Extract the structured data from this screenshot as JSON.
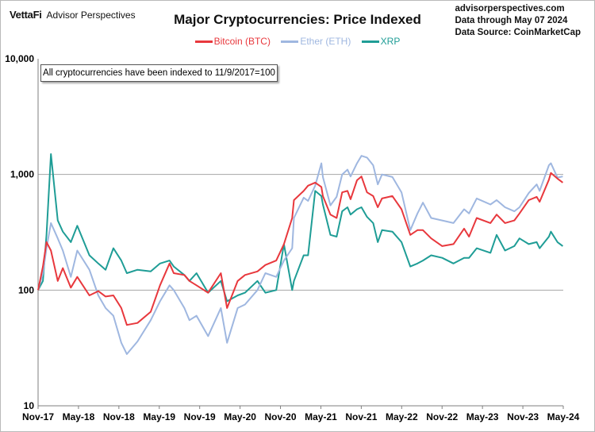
{
  "header": {
    "brand": "VettaFi",
    "brand_sub": "Advisor Perspectives",
    "title": "Major Cryptocurrencies: Price Indexed",
    "site": "advisorperspectives.com",
    "data_through": "Data through May 07 2024",
    "source": "Data Source: CoinMarketCap"
  },
  "note": "All cryptocurrencies have been indexed to 11/9/2017=100",
  "chart_data": {
    "type": "line",
    "title": "Major Cryptocurrencies: Price Indexed",
    "y_scale": "log",
    "ylim": [
      10,
      10000
    ],
    "y_ticks": [
      "10",
      "100",
      "1,000",
      "10,000"
    ],
    "x_ticks": [
      "Nov-17",
      "May-18",
      "Nov-18",
      "May-19",
      "Nov-19",
      "May-20",
      "Nov-20",
      "May-21",
      "Nov-21",
      "May-22",
      "Nov-22",
      "May-23",
      "Nov-23",
      "May-24"
    ],
    "legend_position": "top-center",
    "grid": "horizontal",
    "x": [
      "2017-11-09",
      "2017-12-01",
      "2017-12-17",
      "2018-01-06",
      "2018-02-06",
      "2018-03-01",
      "2018-04-06",
      "2018-05-05",
      "2018-06-29",
      "2018-08-08",
      "2018-09-10",
      "2018-10-15",
      "2018-11-20",
      "2018-12-15",
      "2019-02-01",
      "2019-04-02",
      "2019-05-14",
      "2019-06-26",
      "2019-07-15",
      "2019-09-01",
      "2019-09-24",
      "2019-10-26",
      "2019-12-17",
      "2020-02-13",
      "2020-03-12",
      "2020-04-29",
      "2020-06-01",
      "2020-07-27",
      "2020-09-01",
      "2020-10-20",
      "2020-11-24",
      "2020-12-31",
      "2021-01-08",
      "2021-02-21",
      "2021-03-13",
      "2021-04-14",
      "2021-05-12",
      "2021-05-19",
      "2021-06-22",
      "2021-07-20",
      "2021-08-14",
      "2021-09-07",
      "2021-09-21",
      "2021-10-20",
      "2021-11-09",
      "2021-12-04",
      "2022-01-01",
      "2022-01-22",
      "2022-02-10",
      "2022-03-29",
      "2022-05-09",
      "2022-06-18",
      "2022-07-20",
      "2022-08-14",
      "2022-09-20",
      "2022-11-09",
      "2022-12-30",
      "2023-02-16",
      "2023-03-10",
      "2023-04-14",
      "2023-06-15",
      "2023-07-13",
      "2023-08-20",
      "2023-10-01",
      "2023-10-24",
      "2023-12-05",
      "2024-01-10",
      "2024-01-23",
      "2024-03-05",
      "2024-03-14",
      "2024-04-13",
      "2024-05-07"
    ],
    "series": [
      {
        "name": "Bitcoin (BTC)",
        "color": "#e8383d",
        "values": [
          100,
          160,
          260,
          220,
          120,
          155,
          105,
          130,
          90,
          98,
          88,
          90,
          70,
          50,
          52,
          65,
          110,
          170,
          140,
          135,
          120,
          110,
          95,
          140,
          70,
          120,
          135,
          145,
          165,
          180,
          250,
          420,
          600,
          720,
          800,
          850,
          780,
          650,
          450,
          420,
          700,
          720,
          610,
          890,
          960,
          700,
          650,
          520,
          620,
          650,
          500,
          300,
          330,
          330,
          280,
          240,
          250,
          340,
          290,
          420,
          380,
          450,
          380,
          400,
          460,
          600,
          640,
          580,
          900,
          1030,
          920,
          850
        ]
      },
      {
        "name": "Ether (ETH)",
        "color": "#9fb7e0",
        "values": [
          100,
          140,
          230,
          380,
          280,
          220,
          130,
          220,
          150,
          90,
          70,
          60,
          35,
          28,
          36,
          55,
          80,
          110,
          100,
          70,
          55,
          60,
          40,
          70,
          35,
          70,
          75,
          100,
          140,
          130,
          180,
          230,
          420,
          630,
          590,
          800,
          1250,
          950,
          540,
          640,
          1000,
          1100,
          960,
          1250,
          1450,
          1400,
          1200,
          820,
          1000,
          950,
          700,
          330,
          460,
          570,
          420,
          400,
          380,
          500,
          460,
          620,
          550,
          600,
          520,
          480,
          520,
          690,
          820,
          720,
          1200,
          1250,
          940,
          960
        ]
      },
      {
        "name": "XRP",
        "color": "#1f9d96",
        "values": [
          100,
          120,
          300,
          1500,
          400,
          320,
          260,
          360,
          200,
          170,
          150,
          230,
          180,
          140,
          150,
          145,
          170,
          180,
          160,
          135,
          120,
          140,
          95,
          120,
          80,
          90,
          95,
          120,
          95,
          100,
          250,
          100,
          120,
          200,
          200,
          720,
          650,
          550,
          300,
          290,
          480,
          520,
          450,
          500,
          520,
          430,
          380,
          260,
          330,
          320,
          260,
          160,
          170,
          180,
          200,
          190,
          170,
          190,
          190,
          230,
          210,
          300,
          220,
          240,
          280,
          250,
          260,
          230,
          290,
          320,
          260,
          240
        ]
      }
    ]
  }
}
